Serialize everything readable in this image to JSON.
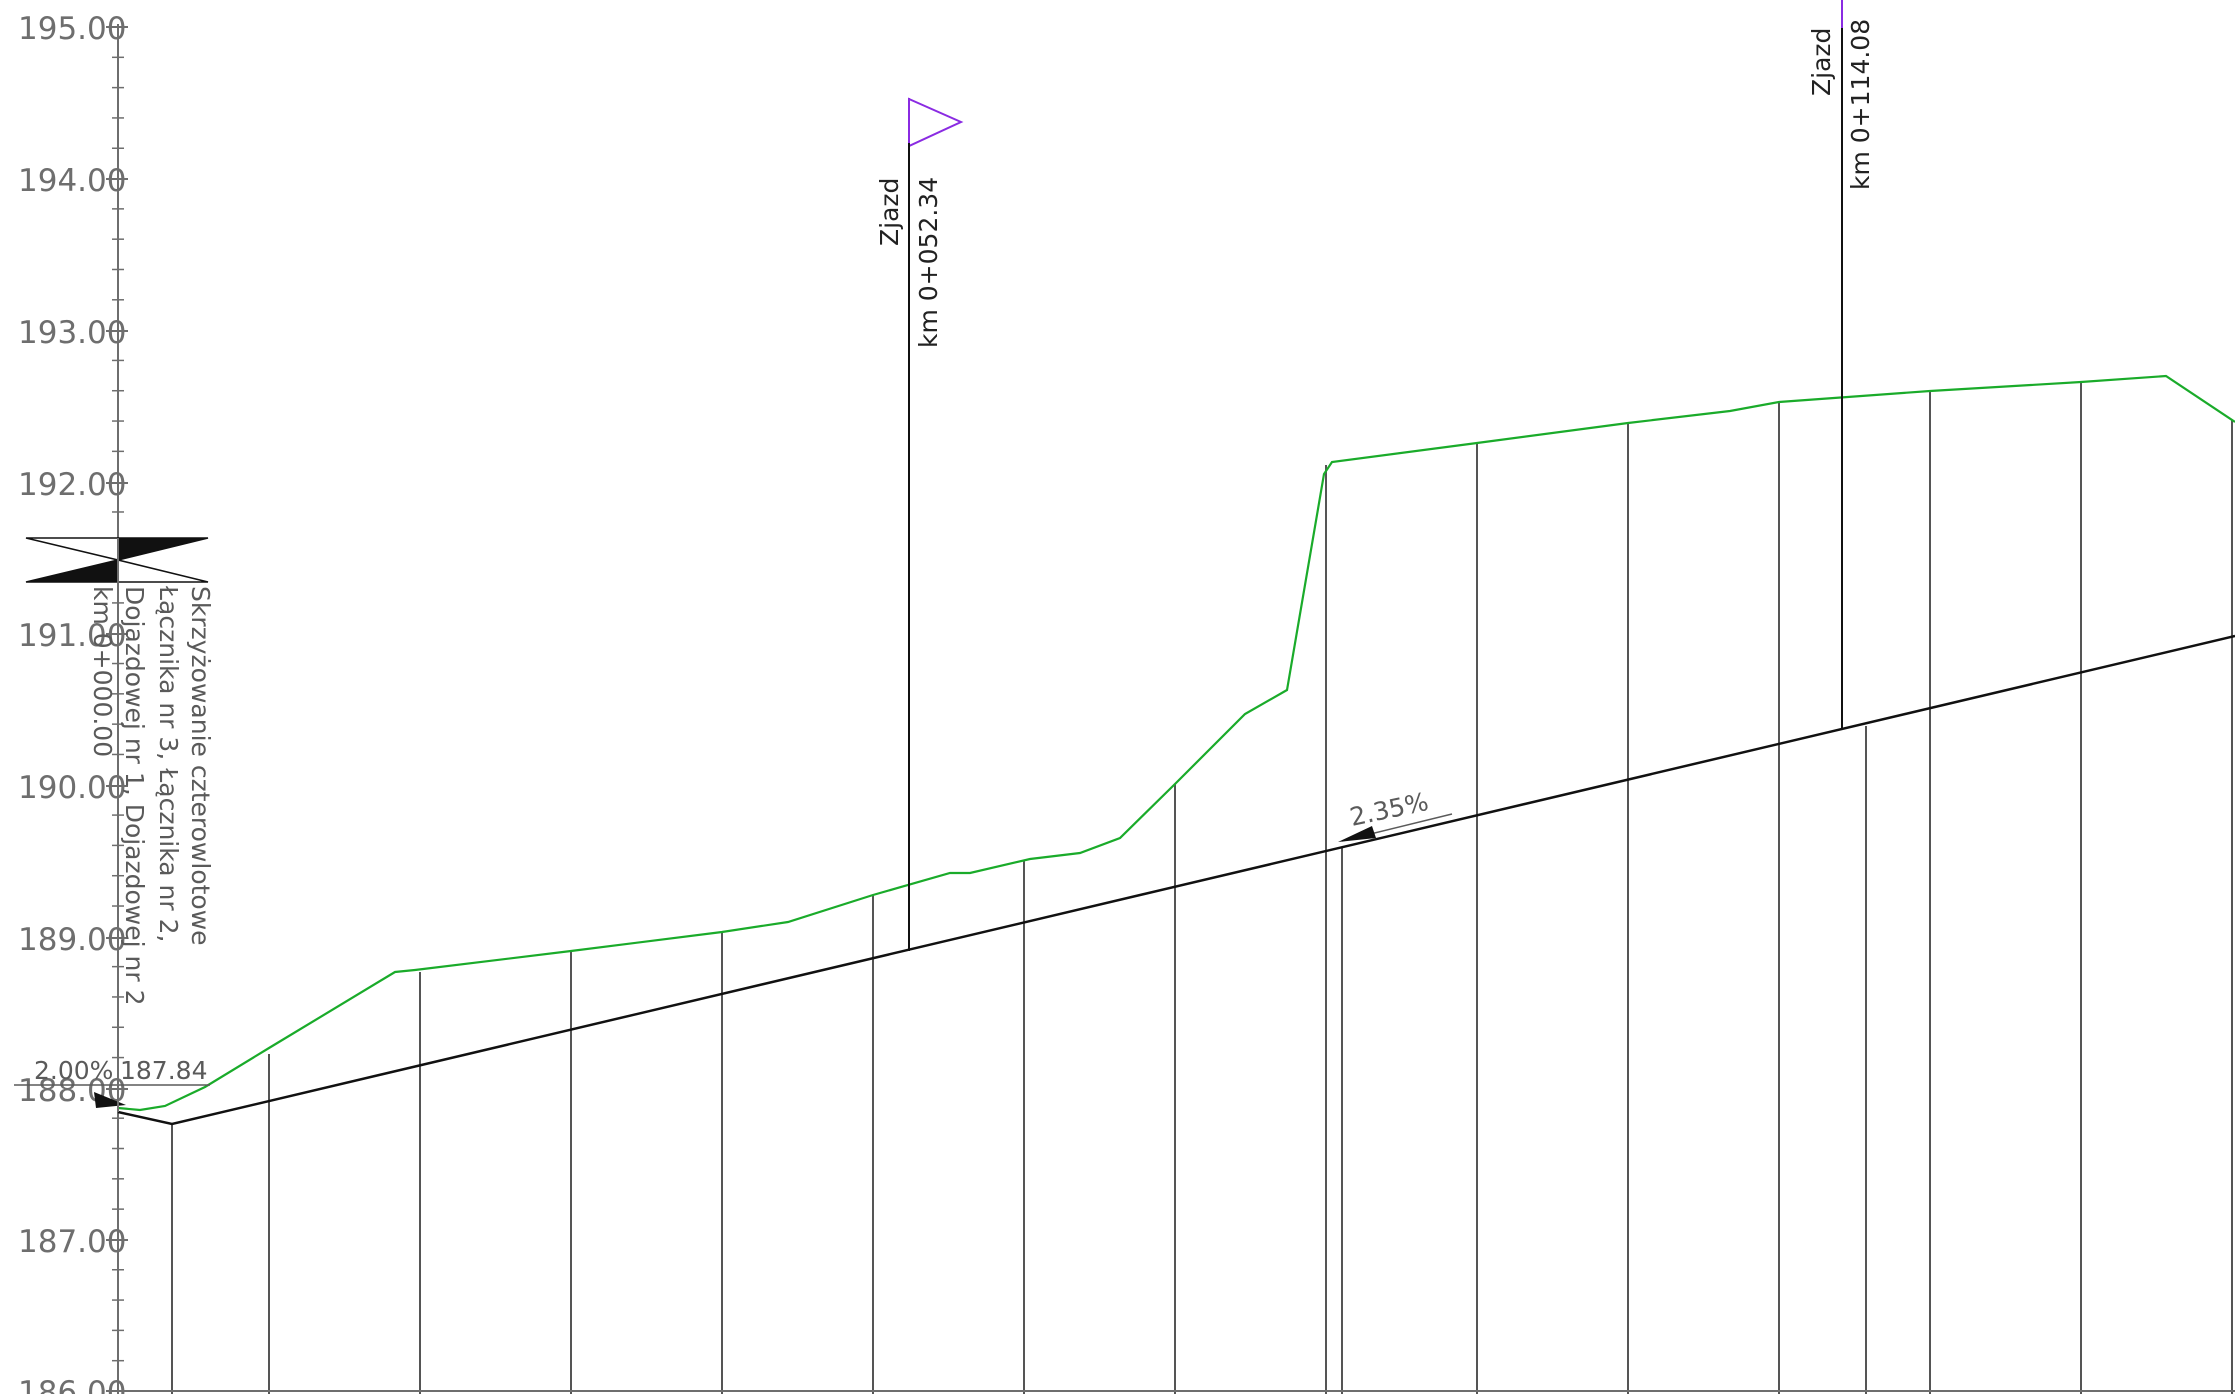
{
  "profile": {
    "y_axis": {
      "ticks": [
        "195.00",
        "194.00",
        "193.00",
        "192.00",
        "191.00",
        "190.00",
        "189.00",
        "188.00",
        "187.00",
        "186.00"
      ]
    },
    "start_marker": {
      "lines": [
        "Skrzyżowanie czterowlotowe",
        "Łącznika nr 3, Łącznika nr 2,",
        "Dojazdowej nr 1, Dojazdowej nr 2",
        "km 0+000.00"
      ]
    },
    "start_grade_label": "2.00%",
    "start_elevation_label": "187.84",
    "grade_label": "2.35%",
    "exits": [
      {
        "title": "Zjazd",
        "km": "km 0+052.34"
      },
      {
        "title": "Zjazd",
        "km": "km 0+114.08"
      }
    ],
    "colors": {
      "terrain": "#1aab2a",
      "design_grade": "#111111",
      "exit_marker": "#8a2be2",
      "axis": "#6e6e6e",
      "verticals": "#555555"
    }
  }
}
